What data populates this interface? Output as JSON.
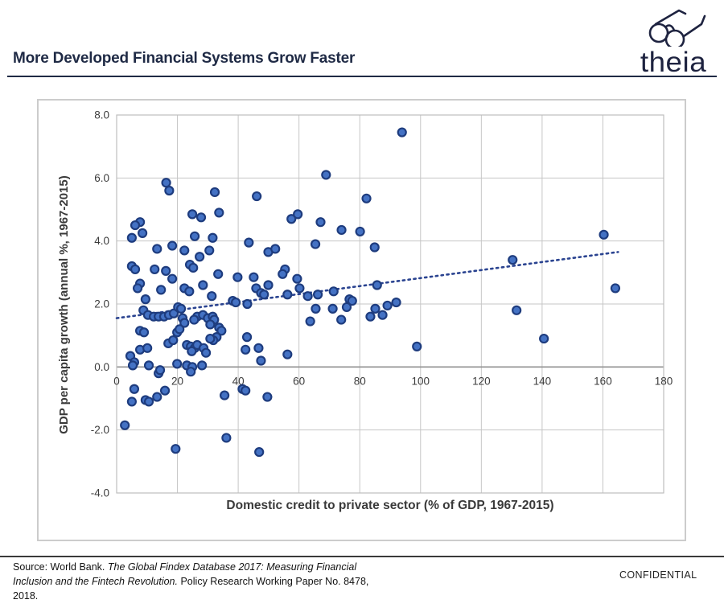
{
  "header": {
    "title": "More Developed Financial Systems Grow Faster",
    "brand": "theia"
  },
  "footer": {
    "source_prefix": "Source: World Bank. ",
    "source_italic": "The Global Findex Database 2017: Measuring Financial Inclusion and the Fintech Revolution.",
    "source_suffix": " Policy Research Working Paper No. 8478, 2018.",
    "confidential": "CONFIDENTIAL"
  },
  "chart_data": {
    "type": "scatter",
    "title": "",
    "xlabel": "Domestic credit to private sector (% of GDP, 1967-2015)",
    "ylabel": "GDP per capita growth (annual %, 1967-2015)",
    "xlim": [
      0,
      180
    ],
    "ylim": [
      -4,
      8
    ],
    "x_ticks": [
      0,
      20,
      40,
      60,
      80,
      100,
      120,
      140,
      160,
      180
    ],
    "y_ticks": [
      8,
      6,
      4,
      2,
      0,
      -2,
      -4
    ],
    "y_tick_labels": [
      "8.0",
      "6.0",
      "4.0",
      "2.0",
      "0.0",
      "-2.0",
      "-4.0"
    ],
    "grid": true,
    "legend": "none",
    "marker_color": "#4472c4",
    "marker_edge": "#1e3c7e",
    "trendline": {
      "style": "dotted",
      "color": "#2a4390",
      "x_start": 0,
      "y_start": 1.55,
      "x_end": 165,
      "y_end": 3.65
    },
    "points": [
      [
        16.3,
        5.85
      ],
      [
        17.3,
        5.6
      ],
      [
        32.3,
        5.55
      ],
      [
        46.1,
        5.42
      ],
      [
        24.9,
        4.85
      ],
      [
        27.8,
        4.75
      ],
      [
        33.7,
        4.9
      ],
      [
        57.5,
        4.7
      ],
      [
        59.6,
        4.85
      ],
      [
        7.7,
        4.6
      ],
      [
        6.1,
        4.5
      ],
      [
        8.5,
        4.25
      ],
      [
        5.0,
        4.1
      ],
      [
        25.7,
        4.15
      ],
      [
        31.6,
        4.1
      ],
      [
        43.5,
        3.95
      ],
      [
        65.4,
        3.9
      ],
      [
        93.9,
        7.45
      ],
      [
        68.9,
        6.1
      ],
      [
        82.2,
        5.35
      ],
      [
        67.1,
        4.6
      ],
      [
        74.0,
        4.35
      ],
      [
        80.1,
        4.3
      ],
      [
        84.9,
        3.8
      ],
      [
        13.3,
        3.75
      ],
      [
        18.3,
        3.85
      ],
      [
        22.3,
        3.7
      ],
      [
        27.3,
        3.5
      ],
      [
        30.5,
        3.7
      ],
      [
        49.9,
        3.65
      ],
      [
        52.2,
        3.75
      ],
      [
        5.0,
        3.2
      ],
      [
        6.1,
        3.1
      ],
      [
        12.5,
        3.1
      ],
      [
        16.2,
        3.05
      ],
      [
        18.3,
        2.8
      ],
      [
        24.1,
        3.25
      ],
      [
        25.2,
        3.15
      ],
      [
        33.4,
        2.95
      ],
      [
        39.8,
        2.85
      ],
      [
        45.1,
        2.85
      ],
      [
        55.4,
        3.1
      ],
      [
        54.6,
        2.95
      ],
      [
        59.4,
        2.8
      ],
      [
        60.2,
        2.5
      ],
      [
        7.7,
        2.65
      ],
      [
        6.9,
        2.5
      ],
      [
        9.5,
        2.15
      ],
      [
        14.6,
        2.45
      ],
      [
        22.3,
        2.5
      ],
      [
        23.9,
        2.4
      ],
      [
        28.4,
        2.6
      ],
      [
        31.3,
        2.25
      ],
      [
        85.7,
        2.6
      ],
      [
        71.4,
        2.4
      ],
      [
        66.2,
        2.3
      ],
      [
        76.6,
        2.15
      ],
      [
        77.5,
        2.1
      ],
      [
        75.7,
        1.9
      ],
      [
        71.1,
        1.85
      ],
      [
        73.9,
        1.5
      ],
      [
        83.5,
        1.6
      ],
      [
        85.1,
        1.85
      ],
      [
        87.5,
        1.65
      ],
      [
        89.1,
        1.95
      ],
      [
        92.0,
        2.05
      ],
      [
        38.2,
        2.1
      ],
      [
        39.2,
        2.05
      ],
      [
        43.0,
        2.0
      ],
      [
        45.9,
        2.5
      ],
      [
        47.5,
        2.35
      ],
      [
        48.5,
        2.3
      ],
      [
        49.9,
        2.6
      ],
      [
        56.2,
        2.3
      ],
      [
        62.9,
        2.25
      ],
      [
        8.8,
        1.8
      ],
      [
        10.3,
        1.65
      ],
      [
        12.2,
        1.6
      ],
      [
        13.8,
        1.6
      ],
      [
        15.6,
        1.6
      ],
      [
        17.2,
        1.65
      ],
      [
        18.8,
        1.7
      ],
      [
        20.2,
        1.9
      ],
      [
        21.2,
        1.85
      ],
      [
        21.7,
        1.55
      ],
      [
        22.3,
        1.4
      ],
      [
        26.5,
        1.6
      ],
      [
        28.4,
        1.65
      ],
      [
        30.0,
        1.55
      ],
      [
        31.6,
        1.6
      ],
      [
        32.1,
        1.5
      ],
      [
        30.8,
        1.35
      ],
      [
        25.5,
        1.5
      ],
      [
        63.7,
        1.45
      ],
      [
        65.5,
        1.85
      ],
      [
        7.7,
        1.15
      ],
      [
        9.0,
        1.1
      ],
      [
        17.0,
        0.75
      ],
      [
        18.6,
        0.85
      ],
      [
        19.9,
        1.1
      ],
      [
        20.7,
        1.2
      ],
      [
        23.1,
        0.7
      ],
      [
        24.4,
        0.65
      ],
      [
        25.7,
        0.6
      ],
      [
        24.7,
        0.5
      ],
      [
        26.5,
        0.7
      ],
      [
        28.6,
        0.6
      ],
      [
        29.4,
        0.45
      ],
      [
        33.7,
        1.25
      ],
      [
        34.5,
        1.15
      ],
      [
        32.9,
        0.95
      ],
      [
        31.8,
        0.85
      ],
      [
        30.8,
        0.9
      ],
      [
        42.9,
        0.95
      ],
      [
        42.4,
        0.55
      ],
      [
        46.7,
        0.6
      ],
      [
        47.5,
        0.2
      ],
      [
        56.2,
        0.4
      ],
      [
        4.5,
        0.35
      ],
      [
        5.8,
        0.15
      ],
      [
        7.7,
        0.55
      ],
      [
        10.1,
        0.6
      ],
      [
        98.8,
        0.65
      ],
      [
        5.3,
        0.05
      ],
      [
        10.6,
        0.05
      ],
      [
        13.8,
        -0.2
      ],
      [
        14.3,
        -0.1
      ],
      [
        19.9,
        0.1
      ],
      [
        23.1,
        0.05
      ],
      [
        24.9,
        0.0
      ],
      [
        28.1,
        0.05
      ],
      [
        24.4,
        -0.15
      ],
      [
        5.8,
        -0.7
      ],
      [
        15.9,
        -0.75
      ],
      [
        13.3,
        -0.95
      ],
      [
        9.5,
        -1.05
      ],
      [
        10.6,
        -1.1
      ],
      [
        5.0,
        -1.1
      ],
      [
        35.5,
        -0.9
      ],
      [
        41.4,
        -0.7
      ],
      [
        42.4,
        -0.75
      ],
      [
        49.6,
        -0.95
      ],
      [
        2.7,
        -1.85
      ],
      [
        36.1,
        -2.25
      ],
      [
        19.4,
        -2.6
      ],
      [
        46.9,
        -2.7
      ],
      [
        130.3,
        3.4
      ],
      [
        160.3,
        4.2
      ],
      [
        164.1,
        2.5
      ],
      [
        131.6,
        1.8
      ],
      [
        140.6,
        0.9
      ]
    ]
  },
  "colors": {
    "accent_navy": "#1f2a45",
    "logo_navy": "#1e2340",
    "grid": "#c6c6c6",
    "plot_border": "#bdbdbd",
    "zero_axis": "#919191",
    "tick_text": "#3c3c3c"
  }
}
